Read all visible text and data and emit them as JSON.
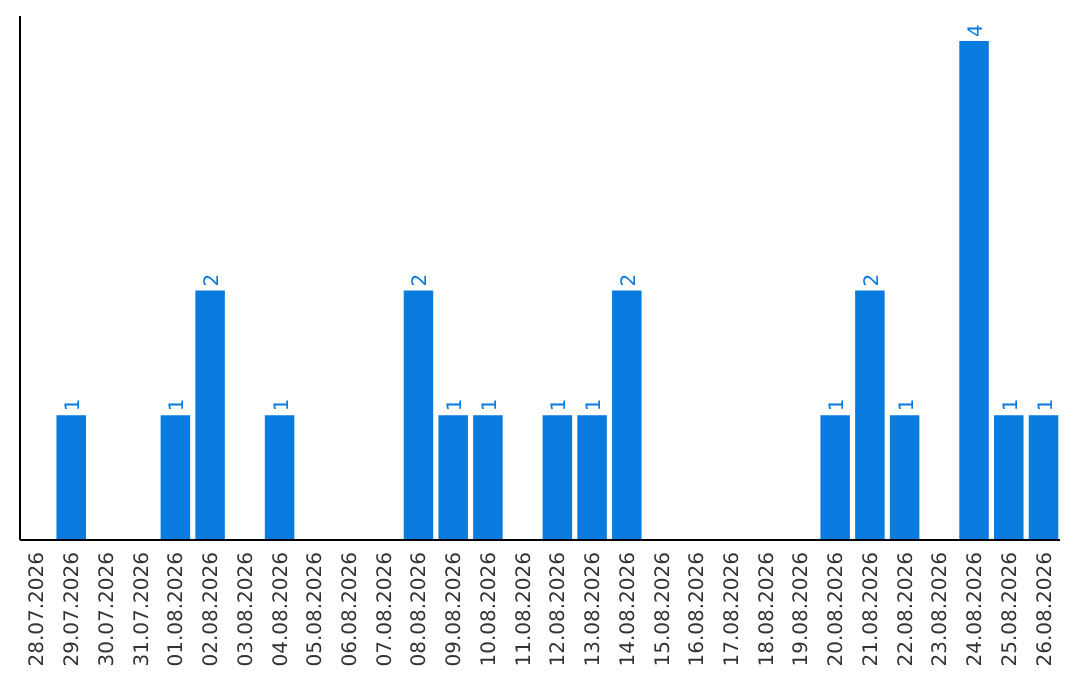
{
  "chart_data": {
    "type": "bar",
    "categories": [
      "28.07.2026",
      "29.07.2026",
      "30.07.2026",
      "31.07.2026",
      "01.08.2026",
      "02.08.2026",
      "03.08.2026",
      "04.08.2026",
      "05.08.2026",
      "06.08.2026",
      "07.08.2026",
      "08.08.2026",
      "09.08.2026",
      "10.08.2026",
      "11.08.2026",
      "12.08.2026",
      "13.08.2026",
      "14.08.2026",
      "15.08.2026",
      "16.08.2026",
      "17.08.2026",
      "18.08.2026",
      "19.08.2026",
      "20.08.2026",
      "21.08.2026",
      "22.08.2026",
      "23.08.2026",
      "24.08.2026",
      "25.08.2026",
      "26.08.2026"
    ],
    "values": [
      0,
      1,
      0,
      0,
      1,
      2,
      0,
      1,
      0,
      0,
      0,
      2,
      1,
      1,
      0,
      1,
      1,
      2,
      0,
      0,
      0,
      0,
      0,
      1,
      2,
      1,
      0,
      4,
      1,
      1
    ],
    "value_labels": [
      null,
      "1",
      null,
      null,
      "1",
      "2",
      null,
      "1",
      null,
      null,
      null,
      "2",
      "1",
      "1",
      null,
      "1",
      "1",
      "2",
      null,
      null,
      null,
      null,
      null,
      "1",
      "2",
      "1",
      null,
      "4",
      "1",
      "1"
    ],
    "color": "#0a7ce0",
    "ylim": [
      0,
      4.2
    ],
    "tick_labels": "x"
  }
}
